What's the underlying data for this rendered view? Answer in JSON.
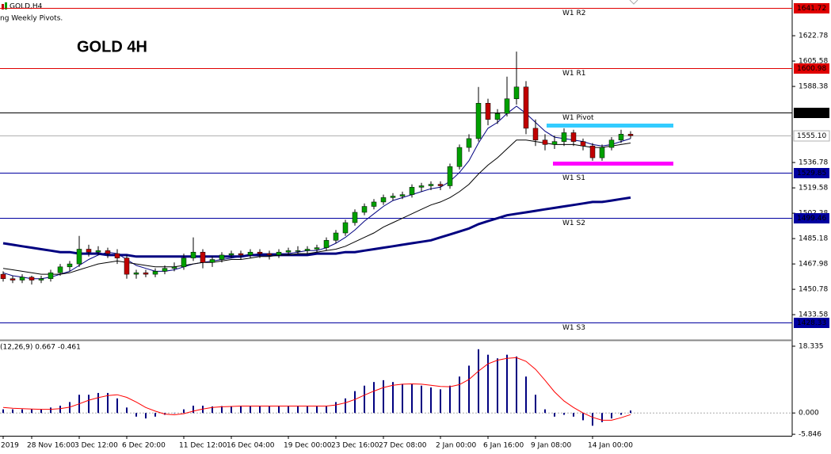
{
  "chart_data": [
    {
      "type": "candlestick",
      "header": "GOLD,H4",
      "indicator": "ng Weekly Pivots.",
      "title": "GOLD 4H",
      "categories": [
        "2019",
        null,
        null,
        "28 Nov 16:00",
        null,
        null,
        null,
        null,
        "3 Dec 12:00",
        null,
        null,
        null,
        null,
        "6 Dec 20:00",
        null,
        null,
        null,
        null,
        null,
        "11 Dec 12:00",
        null,
        null,
        null,
        null,
        "16 Dec 04:00",
        null,
        null,
        null,
        null,
        null,
        "19 Dec 00:00",
        null,
        null,
        null,
        null,
        "23 Dec 16:00",
        null,
        null,
        null,
        null,
        "27 Dec 08:00",
        null,
        null,
        null,
        null,
        null,
        "2 Jan 00:00",
        null,
        null,
        null,
        null,
        "6 Jan 16:00",
        null,
        null,
        null,
        null,
        "9 Jan 08:00",
        null,
        null,
        null,
        null,
        null,
        "14 Jan 00:00",
        null,
        null,
        null,
        null
      ],
      "ohlc": [
        [
          1461,
          1463,
          1456,
          1458
        ],
        [
          1458,
          1460,
          1455,
          1457
        ],
        [
          1457,
          1461,
          1455,
          1459
        ],
        [
          1459,
          1460,
          1454,
          1457
        ],
        [
          1457,
          1460,
          1455,
          1458
        ],
        [
          1458,
          1464,
          1456,
          1462
        ],
        [
          1462,
          1468,
          1460,
          1466
        ],
        [
          1466,
          1470,
          1463,
          1468
        ],
        [
          1468,
          1487,
          1466,
          1478
        ],
        [
          1478,
          1481,
          1473,
          1476
        ],
        [
          1476,
          1480,
          1474,
          1477
        ],
        [
          1477,
          1479,
          1472,
          1475
        ],
        [
          1475,
          1478,
          1468,
          1472
        ],
        [
          1472,
          1474,
          1458,
          1461
        ],
        [
          1461,
          1464,
          1458,
          1462
        ],
        [
          1462,
          1464,
          1459,
          1461
        ],
        [
          1461,
          1465,
          1459,
          1463
        ],
        [
          1463,
          1467,
          1461,
          1465
        ],
        [
          1465,
          1469,
          1463,
          1466
        ],
        [
          1466,
          1475,
          1464,
          1472
        ],
        [
          1472,
          1486,
          1470,
          1476
        ],
        [
          1476,
          1478,
          1465,
          1469
        ],
        [
          1469,
          1473,
          1466,
          1471
        ],
        [
          1471,
          1476,
          1469,
          1474
        ],
        [
          1474,
          1477,
          1472,
          1475
        ],
        [
          1475,
          1477,
          1471,
          1474
        ],
        [
          1474,
          1478,
          1472,
          1476
        ],
        [
          1476,
          1478,
          1472,
          1475
        ],
        [
          1475,
          1477,
          1471,
          1474
        ],
        [
          1474,
          1478,
          1472,
          1476
        ],
        [
          1476,
          1479,
          1474,
          1477
        ],
        [
          1477,
          1480,
          1475,
          1477
        ],
        [
          1477,
          1480,
          1475,
          1478
        ],
        [
          1478,
          1481,
          1476,
          1479
        ],
        [
          1479,
          1486,
          1477,
          1484
        ],
        [
          1484,
          1491,
          1482,
          1489
        ],
        [
          1489,
          1498,
          1487,
          1496
        ],
        [
          1496,
          1505,
          1494,
          1503
        ],
        [
          1503,
          1509,
          1501,
          1507
        ],
        [
          1507,
          1512,
          1505,
          1510
        ],
        [
          1510,
          1515,
          1508,
          1513
        ],
        [
          1513,
          1516,
          1511,
          1514
        ],
        [
          1514,
          1517,
          1512,
          1515
        ],
        [
          1515,
          1522,
          1513,
          1520
        ],
        [
          1520,
          1523,
          1517,
          1521
        ],
        [
          1521,
          1524,
          1518,
          1522
        ],
        [
          1522,
          1524,
          1518,
          1521
        ],
        [
          1521,
          1536,
          1519,
          1534
        ],
        [
          1534,
          1549,
          1532,
          1547
        ],
        [
          1547,
          1556,
          1544,
          1553
        ],
        [
          1553,
          1588,
          1551,
          1577
        ],
        [
          1577,
          1580,
          1562,
          1566
        ],
        [
          1566,
          1573,
          1563,
          1570
        ],
        [
          1570,
          1595,
          1568,
          1580
        ],
        [
          1580,
          1612,
          1576,
          1588
        ],
        [
          1588,
          1592,
          1556,
          1560
        ],
        [
          1560,
          1566,
          1548,
          1552
        ],
        [
          1552,
          1556,
          1545,
          1549
        ],
        [
          1549,
          1555,
          1546,
          1551
        ],
        [
          1551,
          1560,
          1548,
          1557
        ],
        [
          1557,
          1559,
          1548,
          1551
        ],
        [
          1551,
          1553,
          1545,
          1548
        ],
        [
          1548,
          1550,
          1538,
          1540
        ],
        [
          1540,
          1549,
          1538,
          1547
        ],
        [
          1547,
          1554,
          1545,
          1552
        ],
        [
          1552,
          1559,
          1550,
          1556
        ],
        [
          1556,
          1558,
          1553,
          1555
        ]
      ],
      "up_color": "#00a000",
      "down_color": "#c00000",
      "series": [
        {
          "color": "#000080",
          "line_width": 3,
          "values": [
            1482,
            1481,
            1480,
            1479,
            1478,
            1477,
            1476,
            1476,
            1475,
            1475,
            1475,
            1474,
            1474,
            1474,
            1473,
            1473,
            1473,
            1473,
            1473,
            1473,
            1473,
            1473,
            1473,
            1473,
            1473,
            1473,
            1474,
            1474,
            1474,
            1474,
            1474,
            1474,
            1474,
            1475,
            1475,
            1475,
            1476,
            1476,
            1477,
            1478,
            1479,
            1480,
            1481,
            1482,
            1483,
            1484,
            1486,
            1488,
            1490,
            1492,
            1495,
            1497,
            1499,
            1501,
            1502,
            1503,
            1504,
            1505,
            1506,
            1507,
            1508,
            1509,
            1510,
            1510,
            1511,
            1512,
            1513
          ]
        },
        {
          "color": "#000080",
          "line_width": 1,
          "values": [
            1462,
            1460,
            1459,
            1458,
            1458,
            1459,
            1461,
            1463,
            1467,
            1471,
            1474,
            1476,
            1475,
            1471,
            1467,
            1465,
            1463,
            1463,
            1464,
            1466,
            1468,
            1469,
            1470,
            1471,
            1472,
            1473,
            1474,
            1475,
            1475,
            1475,
            1475,
            1476,
            1477,
            1477,
            1479,
            1482,
            1486,
            1491,
            1497,
            1502,
            1507,
            1511,
            1513,
            1515,
            1517,
            1519,
            1520,
            1524,
            1530,
            1538,
            1550,
            1560,
            1564,
            1570,
            1575,
            1570,
            1564,
            1558,
            1554,
            1553,
            1552,
            1551,
            1549,
            1548,
            1549,
            1551,
            1553
          ]
        },
        {
          "color": "#000000",
          "line_width": 1,
          "values": [
            1465,
            1464,
            1463,
            1462,
            1461,
            1461,
            1461,
            1462,
            1464,
            1466,
            1468,
            1469,
            1470,
            1469,
            1468,
            1467,
            1466,
            1466,
            1466,
            1467,
            1468,
            1469,
            1469,
            1470,
            1471,
            1471,
            1472,
            1473,
            1473,
            1474,
            1474,
            1475,
            1475,
            1476,
            1477,
            1478,
            1480,
            1483,
            1486,
            1489,
            1493,
            1496,
            1499,
            1502,
            1505,
            1508,
            1510,
            1513,
            1517,
            1522,
            1529,
            1535,
            1540,
            1546,
            1552,
            1552,
            1551,
            1550,
            1549,
            1549,
            1549,
            1548,
            1547,
            1547,
            1548,
            1549,
            1550
          ]
        }
      ],
      "pivots": [
        {
          "label": "W1 R2",
          "value": 1641.72,
          "color": "#e00000"
        },
        {
          "label": "W1 R1",
          "value": 1600.98,
          "color": "#e00000"
        },
        {
          "label": "W1 Pivot",
          "value": 1570.59,
          "color": "#000000"
        },
        {
          "label": "W1 S1",
          "value": 1529.85,
          "color": "#0000a0"
        },
        {
          "label": "W1 S2",
          "value": 1499.46,
          "color": "#0000a0"
        },
        {
          "label": "W1 S3",
          "value": 1428.33,
          "color": "#0000a0"
        }
      ],
      "last_price": {
        "value": 1555.1,
        "label": "1555.10",
        "color": "#b0b0b0"
      },
      "ylim": [
        1417,
        1647
      ],
      "yticks": [
        1622.78,
        1605.58,
        1588.38,
        1536.78,
        1519.58,
        1502.38,
        1485.18,
        1467.98,
        1450.78,
        1433.58
      ]
    },
    {
      "type": "macd",
      "title": "(12,26,9) 0.667 -0.461",
      "color": "#000080",
      "values": [
        1,
        1,
        1,
        1,
        1,
        1.5,
        2,
        3,
        5,
        5,
        5.5,
        5.5,
        4,
        1.5,
        -1,
        -1.5,
        -1,
        -0.5,
        0,
        1,
        2,
        2,
        1.8,
        1.9,
        1.9,
        1.9,
        1.8,
        1.9,
        1.9,
        1.9,
        1.8,
        1.9,
        1.9,
        1.9,
        2,
        3,
        4,
        6,
        7.5,
        8.5,
        9,
        8.5,
        8,
        8,
        7.5,
        7,
        6.5,
        7.5,
        10,
        13,
        17.5,
        16,
        15,
        16,
        15.5,
        10,
        5,
        1,
        -1,
        -0.5,
        -1,
        -2,
        -3.5,
        -2.5,
        -1.5,
        -0.5,
        0.667
      ],
      "signal": {
        "color": "#ff0000",
        "values": [
          1.5,
          1.3,
          1.2,
          1.1,
          1,
          1,
          1.2,
          1.6,
          2.5,
          3.5,
          4.2,
          4.8,
          5,
          4.3,
          3,
          1.5,
          0.5,
          -0.3,
          -0.5,
          -0.2,
          0.5,
          1.1,
          1.5,
          1.7,
          1.8,
          1.9,
          1.9,
          1.9,
          1.9,
          1.9,
          1.9,
          1.9,
          1.9,
          1.9,
          1.9,
          2.2,
          2.8,
          3.7,
          4.9,
          6,
          7,
          7.6,
          7.9,
          8,
          7.9,
          7.6,
          7.3,
          7.2,
          7.8,
          9.2,
          11.5,
          13.5,
          14.5,
          15,
          15.2,
          14.2,
          12,
          9,
          5.8,
          3.3,
          1.5,
          0,
          -1.2,
          -2,
          -2,
          -1.3,
          -0.461
        ]
      },
      "ylim": [
        -6.26,
        19.63
      ],
      "yticks": [
        18.335,
        {
          "value": 0,
          "label": "0.000"
        },
        -5.846
      ],
      "zero_line": true
    }
  ]
}
